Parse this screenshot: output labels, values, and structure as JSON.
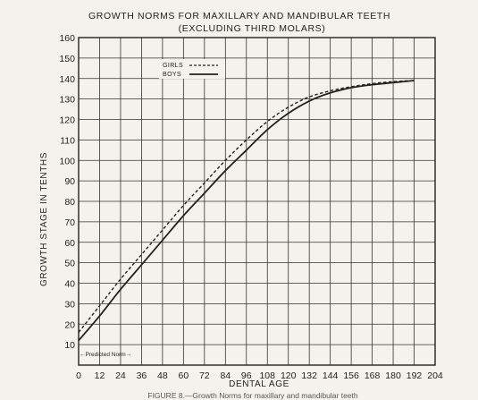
{
  "chart_data": {
    "type": "line",
    "title": "GROWTH NORMS FOR MAXILLARY AND MANDIBULAR TEETH",
    "subtitle": "(EXCLUDING THIRD MOLARS)",
    "xlabel": "DENTAL AGE",
    "ylabel": "GROWTH STAGE IN TENTHS",
    "xlim": [
      0,
      204
    ],
    "ylim": [
      0,
      160
    ],
    "x_ticks": [
      0,
      12,
      24,
      36,
      48,
      60,
      72,
      84,
      96,
      108,
      120,
      132,
      144,
      156,
      168,
      180,
      192,
      204
    ],
    "y_ticks": [
      10,
      20,
      30,
      40,
      50,
      60,
      70,
      80,
      90,
      100,
      110,
      120,
      130,
      140,
      150,
      160
    ],
    "grid": true,
    "legend_position": "top-left",
    "annotation": "←Predicted Norm→",
    "caption": "FIGURE 8.—Growth Norms for maxillary and mandibular teeth",
    "series": [
      {
        "name": "GIRLS",
        "style": "dashed",
        "color": "#222222",
        "x": [
          0,
          12,
          24,
          36,
          48,
          60,
          72,
          84,
          96,
          108,
          120,
          132,
          144,
          156,
          168,
          180,
          192
        ],
        "values": [
          16,
          29,
          42,
          54,
          66,
          78,
          89,
          100,
          110,
          119,
          126,
          131,
          134,
          136,
          137.5,
          138.5,
          139
        ]
      },
      {
        "name": "BOYS",
        "style": "solid",
        "color": "#222222",
        "x": [
          0,
          12,
          24,
          36,
          48,
          60,
          72,
          84,
          96,
          108,
          120,
          132,
          144,
          156,
          168,
          180,
          192
        ],
        "values": [
          12,
          24,
          37,
          49,
          61,
          73,
          84,
          95,
          105,
          115,
          123,
          129,
          133,
          135.5,
          137,
          138,
          139
        ]
      }
    ]
  }
}
